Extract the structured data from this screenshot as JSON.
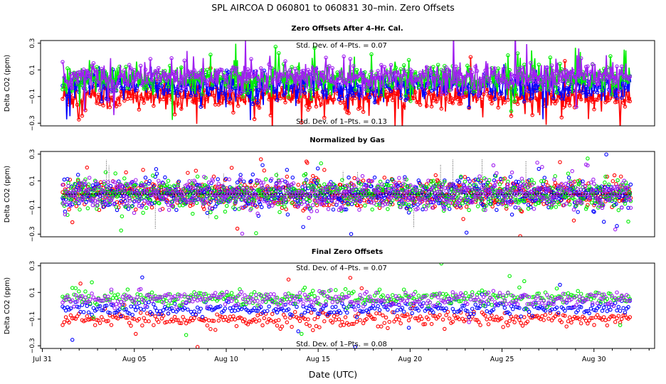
{
  "chart_data": {
    "type": "scatter",
    "title": "SPL    AIRCOA D    060801 to 060831    30–min. Zero Offsets",
    "xlabel": "Date (UTC)",
    "x_tick_labels": [
      "Jul 31",
      "Aug 05",
      "Aug 10",
      "Aug 15",
      "Aug 20",
      "Aug 25",
      "Aug 30"
    ],
    "x_tick_days": [
      0,
      5,
      10,
      15,
      20,
      25,
      30
    ],
    "xlim": [
      -0.1,
      33.3
    ],
    "series_colors": {
      "gas1": "#ff0000",
      "gas2": "#0000ff",
      "gas3": "#00ee00",
      "gas4": "#a020f0",
      "mean": "#000000"
    },
    "panels": [
      {
        "id": "after-cal",
        "title": "Zero Offsets After 4–Hr. Cal.",
        "ylabel": "Delta CO2 (ppm)",
        "ylim": [
          -0.32,
          0.32
        ],
        "y_ticks": [
          -0.3,
          -0.1,
          0.1,
          0.3
        ],
        "y_tick_labels": [
          "−0.3",
          "−0.1",
          "0.1",
          "0.3"
        ],
        "annotation_top": "Std. Dev. of 4–Pts. =  0.07",
        "annotation_bottom": "Std. Dev. of 1–Pts. =  0.13",
        "data_start_day": 1.1,
        "data_end_day": 32.0,
        "gas_means": {
          "gas1": -0.1,
          "gas2": -0.02,
          "gas3": 0.03,
          "gas4": 0.05
        },
        "spread": 0.1
      },
      {
        "id": "normalized",
        "title": "Normalized by Gas",
        "ylabel": "Delta CO2 (ppm)",
        "ylim": [
          -0.32,
          0.32
        ],
        "y_ticks": [
          -0.3,
          -0.1,
          0.1,
          0.3
        ],
        "y_tick_labels": [
          "−0.3",
          "−0.1",
          "0.1",
          "0.3"
        ],
        "data_start_day": 1.1,
        "data_end_day": 32.0,
        "gas_means": {
          "gas1": 0.0,
          "gas2": 0.0,
          "gas3": 0.0,
          "gas4": 0.0
        },
        "spread": 0.1
      },
      {
        "id": "final",
        "title": "Final Zero Offsets",
        "ylabel": "Delta CO2 (ppm)",
        "ylim": [
          -0.32,
          0.32
        ],
        "y_ticks": [
          -0.3,
          -0.1,
          0.1,
          0.3
        ],
        "y_tick_labels": [
          "−0.3",
          "−0.1",
          "0.1",
          "0.3"
        ],
        "annotation_top": "Std. Dev. of 4–Pts. =  0.07",
        "annotation_bottom": "Std. Dev. of 1–Pts. =  0.08",
        "data_start_day": 1.1,
        "data_end_day": 32.0,
        "gas_means": {
          "gas1": -0.1,
          "gas2": -0.02,
          "gas3": 0.06,
          "gas4": 0.05
        },
        "spread": 0.05
      }
    ]
  }
}
